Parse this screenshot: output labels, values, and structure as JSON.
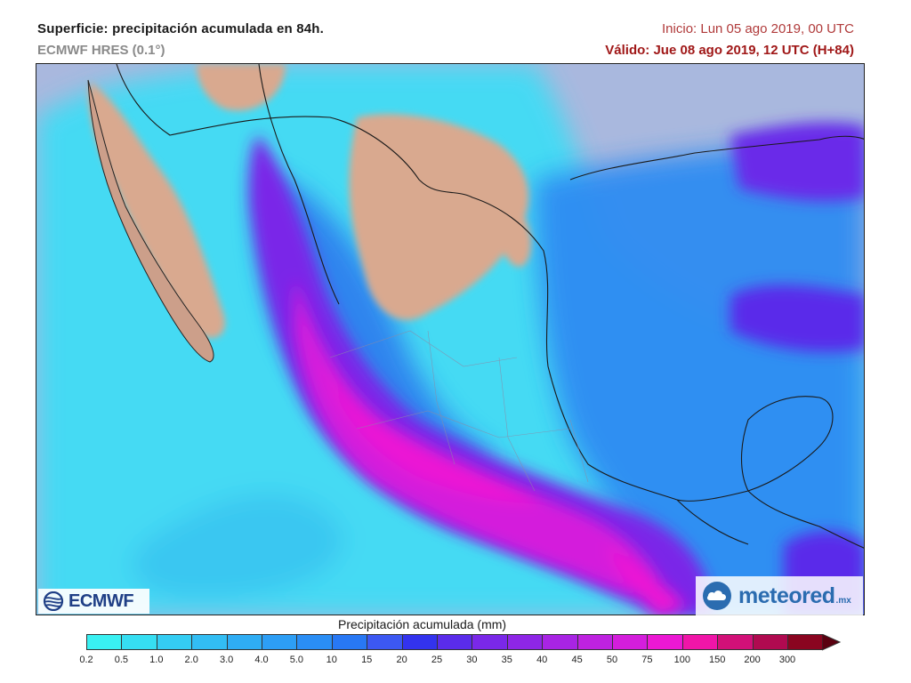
{
  "header": {
    "title": "Superficie: precipitación acumulada en 84h.",
    "model": "ECMWF HRES (0.1°)",
    "init": "Inicio: Lun 05 ago 2019, 00 UTC",
    "valid": "Válido: Jue 08 ago 2019, 12 UTC (H+84)"
  },
  "logos": {
    "ecmwf": "ECMWF",
    "meteored": "meteored",
    "meteored_tld": ".mx"
  },
  "legend": {
    "title": "Precipitación acumulada (mm)",
    "labels": [
      "0.2",
      "0.5",
      "1.0",
      "2.0",
      "3.0",
      "4.0",
      "5.0",
      "10",
      "15",
      "20",
      "25",
      "30",
      "35",
      "40",
      "45",
      "50",
      "75",
      "100",
      "150",
      "200",
      "300"
    ],
    "colors": [
      "#39f0f2",
      "#36def2",
      "#34cdf3",
      "#32bdf3",
      "#2fadf4",
      "#2d9ef5",
      "#2a8ef5",
      "#2878f4",
      "#3c58f2",
      "#3333ee",
      "#5a2cea",
      "#7a28e8",
      "#8e26e6",
      "#a824e4",
      "#be22e0",
      "#d41edc",
      "#ec18d4",
      "#f015a8",
      "#d21078",
      "#b00a50",
      "#8a0520"
    ]
  },
  "map": {
    "ocean_color": "#a9b8de",
    "dry_land_color": "#d9a98f"
  }
}
